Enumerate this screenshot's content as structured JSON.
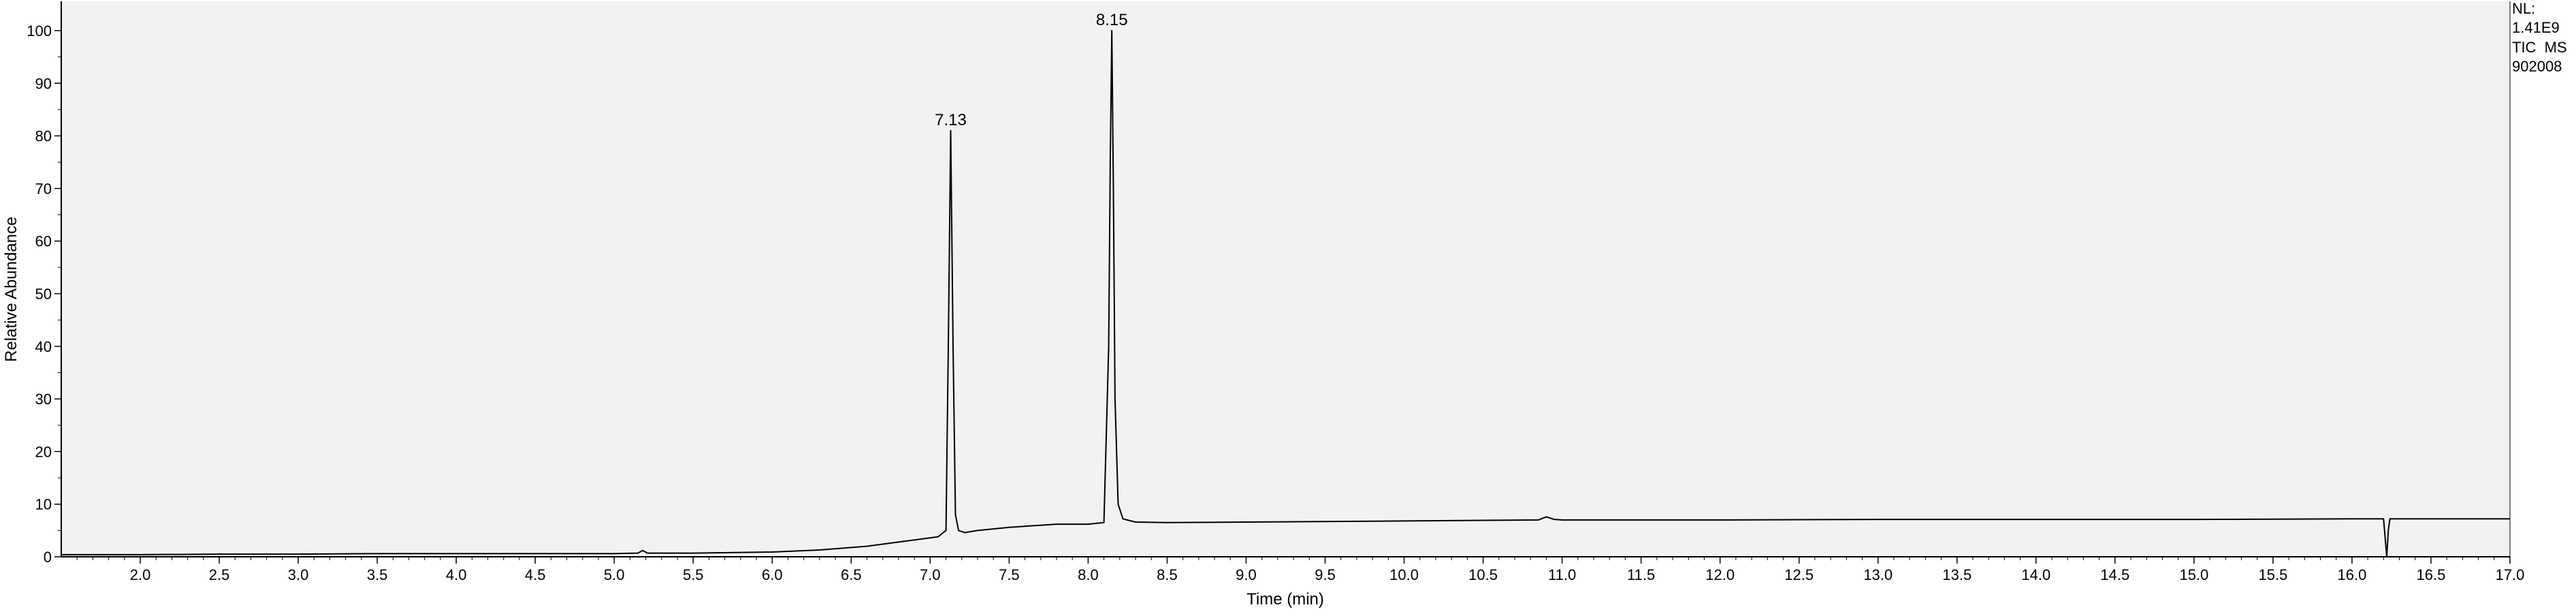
{
  "chart_data": {
    "type": "line",
    "title": "",
    "xlabel": "Time (min)",
    "ylabel": "Relative Abundance",
    "xlim": [
      1.5,
      17.0
    ],
    "ylim": [
      0,
      100
    ],
    "x_ticks": [
      "2.0",
      "2.5",
      "3.0",
      "3.5",
      "4.0",
      "4.5",
      "5.0",
      "5.5",
      "6.0",
      "6.5",
      "7.0",
      "7.5",
      "8.0",
      "8.5",
      "9.0",
      "9.5",
      "10.0",
      "10.5",
      "11.0",
      "11.5",
      "12.0",
      "12.5",
      "13.0",
      "13.5",
      "14.0",
      "14.5",
      "15.0",
      "15.5",
      "16.0",
      "16.5",
      "17.0"
    ],
    "y_ticks": [
      "0",
      "10",
      "20",
      "30",
      "40",
      "50",
      "60",
      "70",
      "80",
      "90",
      "100"
    ],
    "peak_labels": [
      {
        "x": 7.13,
        "y": 81,
        "text": "7.13"
      },
      {
        "x": 8.15,
        "y": 100,
        "text": "8.15"
      }
    ],
    "info_lines": [
      "NL:",
      "1.41E9",
      "TIC  MS",
      "902008"
    ],
    "series": [
      {
        "x": [
          1.5,
          2.0,
          2.5,
          3.0,
          3.5,
          4.0,
          4.5,
          5.0,
          5.15,
          5.18,
          5.21,
          5.5,
          6.0,
          6.3,
          6.6,
          6.9,
          7.05,
          7.1,
          7.115,
          7.13,
          7.145,
          7.16,
          7.18,
          7.22,
          7.3,
          7.5,
          7.8,
          8.0,
          8.1,
          8.13,
          8.14,
          8.15,
          8.16,
          8.17,
          8.19,
          8.22,
          8.3,
          8.5,
          9.0,
          10.0,
          10.85,
          10.9,
          10.95,
          11.0,
          12.0,
          13.0,
          14.0,
          15.0,
          16.0,
          16.2,
          16.22,
          16.23,
          16.24,
          16.26,
          16.5,
          17.0
        ],
        "y": [
          0.4,
          0.4,
          0.5,
          0.5,
          0.6,
          0.6,
          0.6,
          0.6,
          0.7,
          1.2,
          0.7,
          0.7,
          0.9,
          1.3,
          2.0,
          3.2,
          3.8,
          5,
          40,
          81,
          40,
          8,
          5,
          4.6,
          5,
          5.6,
          6.2,
          6.2,
          6.5,
          40,
          75,
          100,
          70,
          30,
          10,
          7.2,
          6.6,
          6.5,
          6.6,
          6.8,
          7.0,
          7.6,
          7.1,
          7.0,
          7.0,
          7.1,
          7.1,
          7.1,
          7.2,
          7.2,
          0.0,
          5,
          7.2,
          7.2,
          7.2,
          7.2
        ],
        "color": "#000000"
      }
    ]
  }
}
